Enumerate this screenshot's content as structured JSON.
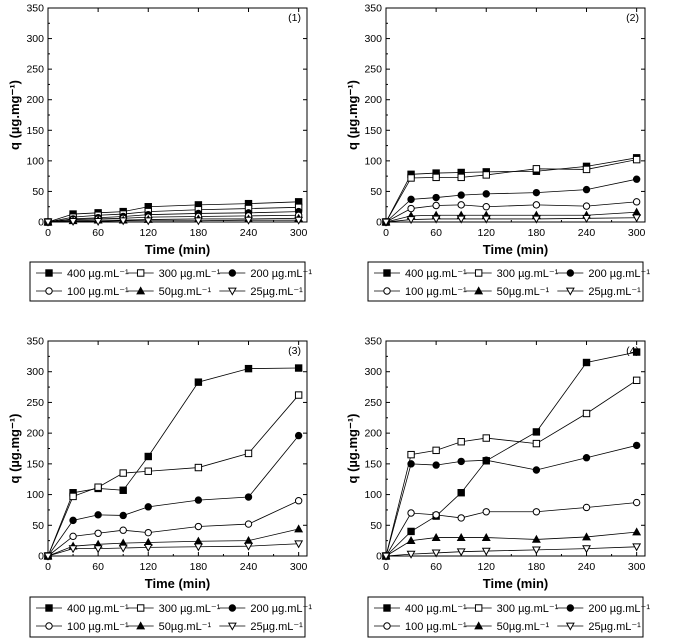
{
  "chart_data": [
    {
      "type": "line",
      "panel_label": "(1)",
      "xlabel": "Time (min)",
      "ylabel": "q (µg.mg⁻¹)",
      "xlim": [
        0,
        310
      ],
      "ylim": [
        0,
        350
      ],
      "xticks": [
        "0",
        "60",
        "120",
        "180",
        "240",
        "300"
      ],
      "yticks": [
        "0",
        "50",
        "100",
        "150",
        "200",
        "250",
        "300",
        "350"
      ],
      "series": [
        {
          "name": "400 µg.mL⁻¹",
          "marker": "square-filled",
          "x": [
            0,
            30,
            60,
            90,
            120,
            180,
            240,
            300
          ],
          "y": [
            0,
            13,
            15,
            17,
            25,
            28,
            30,
            33
          ]
        },
        {
          "name": "300 µg.mL⁻¹",
          "marker": "square-open",
          "x": [
            0,
            30,
            60,
            90,
            120,
            180,
            240,
            300
          ],
          "y": [
            0,
            8,
            11,
            13,
            17,
            20,
            22,
            24
          ]
        },
        {
          "name": "200 µg.mL⁻¹",
          "marker": "circle-filled",
          "x": [
            0,
            30,
            60,
            90,
            120,
            180,
            240,
            300
          ],
          "y": [
            0,
            5,
            7,
            9,
            12,
            14,
            15,
            17
          ]
        },
        {
          "name": "100 µg.mL⁻¹",
          "marker": "circle-open",
          "x": [
            0,
            30,
            60,
            90,
            120,
            180,
            240,
            300
          ],
          "y": [
            0,
            4,
            5,
            6,
            8,
            9,
            10,
            11
          ]
        },
        {
          "name": "50µg.mL⁻¹",
          "marker": "triangle-up-filled",
          "x": [
            0,
            30,
            60,
            90,
            120,
            180,
            240,
            300
          ],
          "y": [
            0,
            2,
            3,
            3,
            4,
            5,
            5,
            6
          ]
        },
        {
          "name": "25µg.mL⁻¹",
          "marker": "triangle-down-open",
          "x": [
            0,
            30,
            60,
            90,
            120,
            180,
            240,
            300
          ],
          "y": [
            0,
            1,
            1,
            2,
            2,
            2,
            3,
            3
          ]
        }
      ]
    },
    {
      "type": "line",
      "panel_label": "(2)",
      "xlabel": "Time (min)",
      "ylabel": "q (µg.mg⁻¹)",
      "xlim": [
        0,
        310
      ],
      "ylim": [
        0,
        350
      ],
      "xticks": [
        "0",
        "60",
        "120",
        "180",
        "240",
        "300"
      ],
      "yticks": [
        "0",
        "50",
        "100",
        "150",
        "200",
        "250",
        "300",
        "350"
      ],
      "series": [
        {
          "name": "400 µg.mL⁻¹",
          "marker": "square-filled",
          "x": [
            0,
            30,
            60,
            90,
            120,
            180,
            240,
            300
          ],
          "y": [
            0,
            78,
            80,
            81,
            82,
            83,
            91,
            105
          ]
        },
        {
          "name": "300 µg.mL⁻¹",
          "marker": "square-open",
          "x": [
            0,
            30,
            60,
            90,
            120,
            180,
            240,
            300
          ],
          "y": [
            0,
            72,
            73,
            73,
            77,
            87,
            86,
            102
          ]
        },
        {
          "name": "200 µg.mL⁻¹",
          "marker": "circle-filled",
          "x": [
            0,
            30,
            60,
            90,
            120,
            180,
            240,
            300
          ],
          "y": [
            0,
            37,
            40,
            44,
            46,
            48,
            53,
            70
          ]
        },
        {
          "name": "100 µg.mL⁻¹",
          "marker": "circle-open",
          "x": [
            0,
            30,
            60,
            90,
            120,
            180,
            240,
            300
          ],
          "y": [
            0,
            22,
            27,
            28,
            25,
            28,
            26,
            33
          ]
        },
        {
          "name": "50µg.mL⁻¹",
          "marker": "triangle-up-filled",
          "x": [
            0,
            30,
            60,
            90,
            120,
            180,
            240,
            300
          ],
          "y": [
            0,
            10,
            11,
            11,
            11,
            11,
            11,
            16
          ]
        },
        {
          "name": "25µg.mL⁻¹",
          "marker": "triangle-down-open",
          "x": [
            0,
            30,
            60,
            90,
            120,
            180,
            240,
            300
          ],
          "y": [
            0,
            4,
            5,
            5,
            5,
            5,
            6,
            7
          ]
        }
      ]
    },
    {
      "type": "line",
      "panel_label": "(3)",
      "xlabel": "Time (min)",
      "ylabel": "q (µg.mg⁻¹)",
      "xlim": [
        0,
        310
      ],
      "ylim": [
        0,
        350
      ],
      "xticks": [
        "0",
        "60",
        "120",
        "180",
        "240",
        "300"
      ],
      "yticks": [
        "0",
        "50",
        "100",
        "150",
        "200",
        "250",
        "300",
        "350"
      ],
      "series": [
        {
          "name": "400 µg.mL⁻¹",
          "marker": "square-filled",
          "x": [
            0,
            30,
            60,
            90,
            120,
            180,
            240,
            300
          ],
          "y": [
            0,
            103,
            110,
            107,
            162,
            283,
            305,
            306
          ]
        },
        {
          "name": "300 µg.mL⁻¹",
          "marker": "square-open",
          "x": [
            0,
            30,
            60,
            90,
            120,
            180,
            240,
            300
          ],
          "y": [
            0,
            97,
            112,
            135,
            138,
            144,
            167,
            262
          ]
        },
        {
          "name": "200 µg.mL⁻¹",
          "marker": "circle-filled",
          "x": [
            0,
            30,
            60,
            90,
            120,
            180,
            240,
            300
          ],
          "y": [
            0,
            58,
            67,
            66,
            80,
            91,
            96,
            196
          ]
        },
        {
          "name": "100 µg.mL⁻¹",
          "marker": "circle-open",
          "x": [
            0,
            30,
            60,
            90,
            120,
            180,
            240,
            300
          ],
          "y": [
            0,
            32,
            37,
            42,
            38,
            48,
            52,
            90
          ]
        },
        {
          "name": "50µg.mL⁻¹",
          "marker": "triangle-up-filled",
          "x": [
            0,
            30,
            60,
            90,
            120,
            180,
            240,
            300
          ],
          "y": [
            0,
            16,
            19,
            21,
            22,
            24,
            25,
            44
          ]
        },
        {
          "name": "25µg.mL⁻¹",
          "marker": "triangle-down-open",
          "x": [
            0,
            30,
            60,
            90,
            120,
            180,
            240,
            300
          ],
          "y": [
            0,
            12,
            12,
            13,
            14,
            15,
            16,
            20
          ]
        }
      ]
    },
    {
      "type": "line",
      "panel_label": "(4)",
      "xlabel": "Time (min)",
      "ylabel": "q (µg.mg⁻¹)",
      "xlim": [
        0,
        310
      ],
      "ylim": [
        0,
        350
      ],
      "xticks": [
        "0",
        "60",
        "120",
        "180",
        "240",
        "300"
      ],
      "yticks": [
        "0",
        "50",
        "100",
        "150",
        "200",
        "250",
        "300",
        "350"
      ],
      "series": [
        {
          "name": "400 µg.mL⁻¹",
          "marker": "square-filled",
          "x": [
            0,
            30,
            60,
            90,
            120,
            180,
            240,
            300
          ],
          "y": [
            0,
            40,
            65,
            103,
            155,
            202,
            315,
            332
          ]
        },
        {
          "name": "300 µg.mL⁻¹",
          "marker": "square-open",
          "x": [
            0,
            30,
            60,
            90,
            120,
            180,
            240,
            300
          ],
          "y": [
            0,
            165,
            172,
            186,
            192,
            183,
            232,
            286
          ]
        },
        {
          "name": "200 µg.mL⁻¹",
          "marker": "circle-filled",
          "x": [
            0,
            30,
            60,
            90,
            120,
            180,
            240,
            300
          ],
          "y": [
            0,
            150,
            148,
            154,
            156,
            140,
            160,
            180
          ]
        },
        {
          "name": "100 µg.mL⁻¹",
          "marker": "circle-open",
          "x": [
            0,
            30,
            60,
            90,
            120,
            180,
            240,
            300
          ],
          "y": [
            0,
            70,
            67,
            62,
            72,
            72,
            79,
            87
          ]
        },
        {
          "name": "50µg.mL⁻¹",
          "marker": "triangle-up-filled",
          "x": [
            0,
            30,
            60,
            90,
            120,
            180,
            240,
            300
          ],
          "y": [
            0,
            25,
            30,
            30,
            30,
            27,
            31,
            39
          ]
        },
        {
          "name": "25µg.mL⁻¹",
          "marker": "triangle-down-open",
          "x": [
            0,
            30,
            60,
            90,
            120,
            180,
            240,
            300
          ],
          "y": [
            0,
            3,
            5,
            7,
            8,
            10,
            12,
            15
          ]
        }
      ]
    }
  ]
}
